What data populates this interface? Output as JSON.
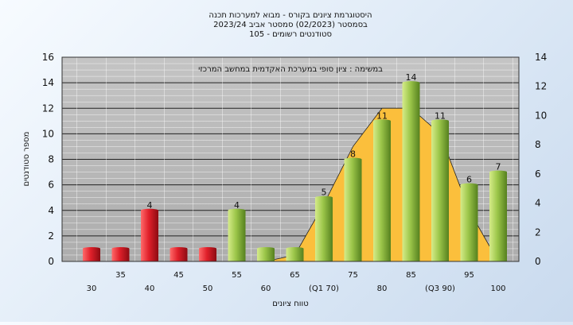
{
  "chart_data": {
    "type": "bar",
    "title_lines": [
      "היסטוגרמת ציונים בקורס - מבוא למערכות תכנה",
      "בסמסטר  (02/2023)  סמסטר אביב 2023/24",
      "סטודנטים רשומים - 105"
    ],
    "subtitle": "במשימה : ציון סופי במערכת האקדמית במחשב המרכזי",
    "xlabel": "טווח ציונים",
    "ylabel": "מספר סטודנטים",
    "ylim": [
      0,
      16
    ],
    "y2lim": [
      0,
      14
    ],
    "yticks": [
      0,
      2,
      4,
      6,
      8,
      10,
      12,
      14,
      16
    ],
    "y2ticks": [
      0,
      2,
      4,
      6,
      8,
      10,
      12,
      14
    ],
    "categories": [
      "30",
      "35",
      "40",
      "45",
      "50",
      "55",
      "60",
      "65",
      "70",
      "75",
      "80",
      "85",
      "90",
      "95",
      "100"
    ],
    "tick_labels": [
      "30",
      "35",
      "40",
      "45",
      "50",
      "55",
      "60",
      "65",
      "(Q1 70)",
      "75",
      "80",
      "85",
      "(Q3 90)",
      "95",
      "100"
    ],
    "values": [
      1,
      1,
      4,
      1,
      1,
      4,
      1,
      1,
      5,
      8,
      11,
      14,
      11,
      6,
      7
    ],
    "data_labels": [
      "",
      "",
      "4",
      "",
      "",
      "4",
      "",
      "",
      "5",
      "8",
      "11",
      "14",
      "11",
      "6",
      "7"
    ],
    "bar_colors": [
      "red",
      "red",
      "red",
      "red",
      "red",
      "green",
      "green",
      "green",
      "green",
      "green",
      "green",
      "green",
      "green",
      "green",
      "green"
    ],
    "distribution_curve": [
      0,
      0,
      0,
      0,
      0,
      0,
      0,
      0.5,
      4.5,
      9,
      12,
      12,
      10,
      4,
      0
    ],
    "grid": true,
    "colors": {
      "fail": "#e0202a",
      "pass": "#8fbc3f",
      "curve_fill": "#fbbf3c",
      "plot_bg": "#b9b9b9",
      "grid_dark": "#222222",
      "grid_light": "#ffffff"
    }
  }
}
